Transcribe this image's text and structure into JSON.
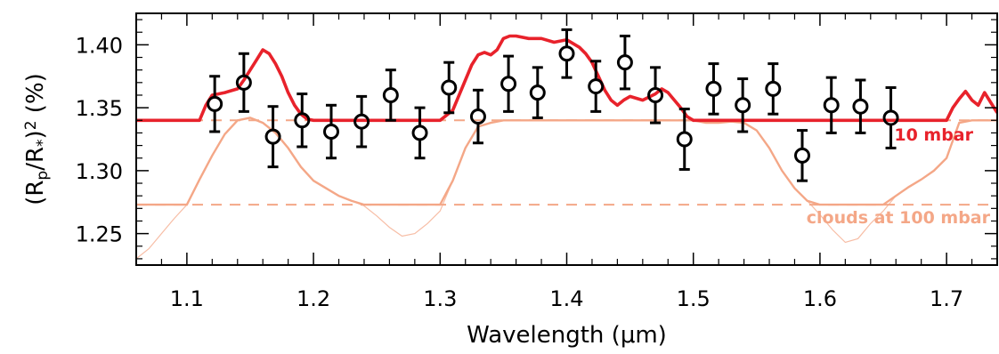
{
  "chart_data": {
    "type": "scatter",
    "xlabel": "Wavelength (μm)",
    "ylabel_parts": {
      "open": "(R",
      "sub_p": "p",
      "mid": "/R",
      "sub_star": "*",
      "close": ")",
      "sup": "2",
      "unit": " (%)"
    },
    "xlim": [
      1.06,
      1.74
    ],
    "ylim": [
      1.225,
      1.425
    ],
    "x_ticks": [
      1.1,
      1.2,
      1.3,
      1.4,
      1.5,
      1.6,
      1.7
    ],
    "x_tick_labels": [
      "1.1",
      "1.2",
      "1.3",
      "1.4",
      "1.5",
      "1.6",
      "1.7"
    ],
    "y_ticks": [
      1.25,
      1.3,
      1.35,
      1.4
    ],
    "y_tick_labels": [
      "1.25",
      "1.30",
      "1.35",
      "1.40"
    ],
    "colors": {
      "model_10mbar": "#e8222b",
      "model_clouds": "#f4a787",
      "data": "#000000"
    },
    "observations": {
      "x": [
        1.122,
        1.145,
        1.168,
        1.191,
        1.214,
        1.238,
        1.261,
        1.284,
        1.307,
        1.33,
        1.354,
        1.377,
        1.4,
        1.423,
        1.446,
        1.47,
        1.493,
        1.516,
        1.539,
        1.563,
        1.586,
        1.609,
        1.632,
        1.656
      ],
      "y": [
        1.353,
        1.37,
        1.327,
        1.34,
        1.331,
        1.339,
        1.36,
        1.33,
        1.366,
        1.343,
        1.369,
        1.362,
        1.393,
        1.367,
        1.386,
        1.36,
        1.325,
        1.365,
        1.352,
        1.365,
        1.312,
        1.352,
        1.351,
        1.342
      ],
      "yerr": [
        0.022,
        0.023,
        0.024,
        0.021,
        0.021,
        0.02,
        0.02,
        0.02,
        0.02,
        0.021,
        0.022,
        0.02,
        0.019,
        0.02,
        0.021,
        0.022,
        0.024,
        0.02,
        0.021,
        0.02,
        0.02,
        0.022,
        0.021,
        0.024
      ]
    },
    "series": [
      {
        "name": "10 mbar",
        "baseline": 1.34,
        "x": [
          1.06,
          1.11,
          1.115,
          1.12,
          1.13,
          1.14,
          1.145,
          1.15,
          1.155,
          1.16,
          1.165,
          1.17,
          1.175,
          1.18,
          1.185,
          1.19,
          1.195,
          1.2,
          1.3,
          1.31,
          1.315,
          1.32,
          1.325,
          1.33,
          1.335,
          1.34,
          1.345,
          1.35,
          1.355,
          1.36,
          1.37,
          1.38,
          1.39,
          1.4,
          1.41,
          1.415,
          1.42,
          1.425,
          1.43,
          1.435,
          1.44,
          1.445,
          1.45,
          1.46,
          1.47,
          1.475,
          1.48,
          1.485,
          1.49,
          1.495,
          1.5,
          1.6,
          1.7,
          1.705,
          1.71,
          1.715,
          1.72,
          1.725,
          1.73,
          1.735,
          1.74
        ],
        "y": [
          1.34,
          1.34,
          1.352,
          1.36,
          1.362,
          1.365,
          1.372,
          1.38,
          1.388,
          1.396,
          1.393,
          1.385,
          1.375,
          1.362,
          1.352,
          1.345,
          1.341,
          1.34,
          1.34,
          1.348,
          1.36,
          1.372,
          1.384,
          1.392,
          1.394,
          1.392,
          1.396,
          1.405,
          1.407,
          1.407,
          1.405,
          1.405,
          1.402,
          1.404,
          1.398,
          1.393,
          1.386,
          1.375,
          1.364,
          1.356,
          1.352,
          1.356,
          1.359,
          1.356,
          1.361,
          1.365,
          1.362,
          1.356,
          1.35,
          1.343,
          1.34,
          1.34,
          1.34,
          1.35,
          1.357,
          1.363,
          1.356,
          1.352,
          1.362,
          1.354,
          1.346
        ]
      },
      {
        "name": "clouds at 100 mbar",
        "baseline": 1.273,
        "x": [
          1.06,
          1.07,
          1.08,
          1.09,
          1.1,
          1.11,
          1.12,
          1.13,
          1.14,
          1.15,
          1.16,
          1.17,
          1.18,
          1.19,
          1.2,
          1.21,
          1.22,
          1.23,
          1.24,
          1.25,
          1.26,
          1.27,
          1.28,
          1.29,
          1.3,
          1.31,
          1.32,
          1.33,
          1.34,
          1.35,
          1.36,
          1.5,
          1.51,
          1.52,
          1.53,
          1.54,
          1.55,
          1.56,
          1.57,
          1.58,
          1.59,
          1.6,
          1.61,
          1.62,
          1.63,
          1.64,
          1.65,
          1.66,
          1.67,
          1.68,
          1.69,
          1.7,
          1.705,
          1.71,
          1.72,
          1.73,
          1.74
        ],
        "y": [
          1.23,
          1.238,
          1.25,
          1.262,
          1.273,
          1.293,
          1.312,
          1.329,
          1.34,
          1.342,
          1.338,
          1.33,
          1.318,
          1.303,
          1.292,
          1.286,
          1.28,
          1.276,
          1.272,
          1.264,
          1.255,
          1.248,
          1.25,
          1.258,
          1.268,
          1.292,
          1.318,
          1.335,
          1.338,
          1.34,
          1.34,
          1.34,
          1.338,
          1.338,
          1.339,
          1.338,
          1.332,
          1.318,
          1.3,
          1.286,
          1.276,
          1.265,
          1.253,
          1.243,
          1.246,
          1.258,
          1.268,
          1.28,
          1.287,
          1.293,
          1.3,
          1.31,
          1.324,
          1.338,
          1.34,
          1.34,
          1.34
        ]
      }
    ],
    "annotations": [
      {
        "text": "10 mbar",
        "color": "#e8222b"
      },
      {
        "text": "clouds at 100 mbar",
        "color": "#f4a787"
      }
    ]
  }
}
